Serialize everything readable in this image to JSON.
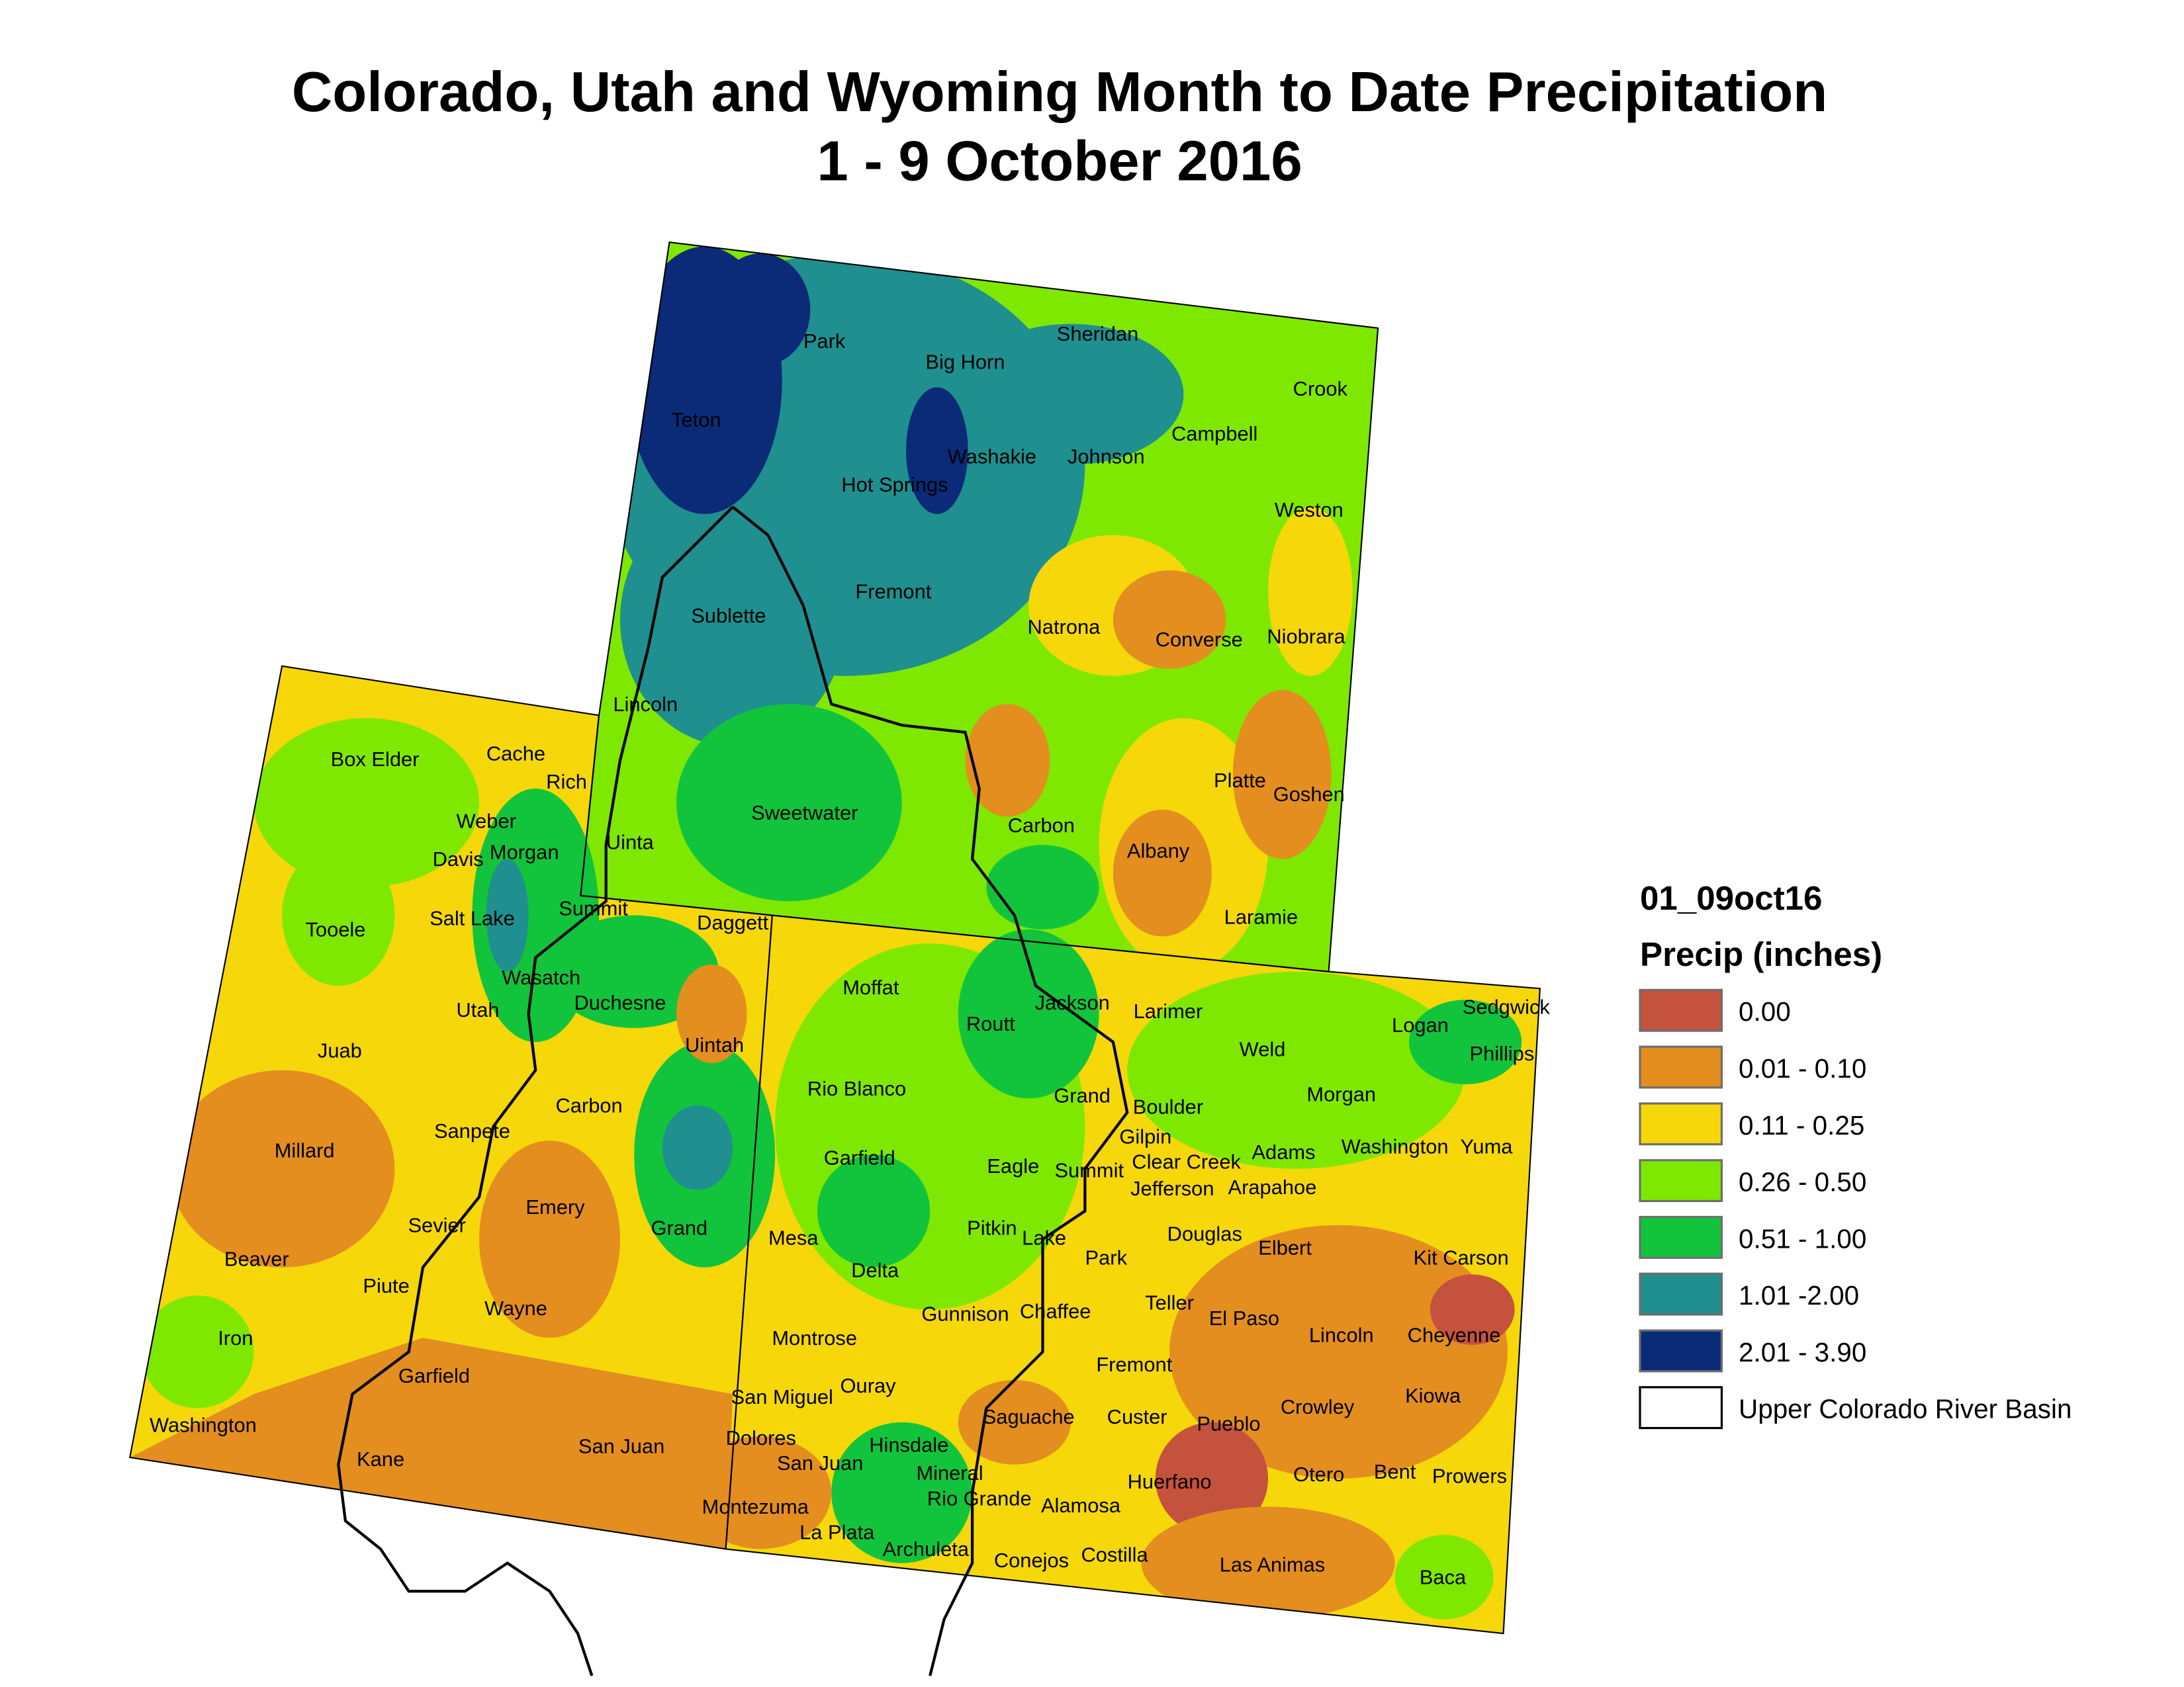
{
  "title": {
    "line1": "Colorado, Utah and Wyoming Month to Date Precipitation",
    "line2": "1 - 9 October 2016"
  },
  "legend": {
    "layer_name": "01_09oct16",
    "field_title": "Precip (inches)",
    "classes": [
      {
        "label": "0.00",
        "color": "#c4523c"
      },
      {
        "label": "0.01 - 0.10",
        "color": "#e38e1f"
      },
      {
        "label": "0.11 - 0.25",
        "color": "#f6d70a"
      },
      {
        "label": "0.26 - 0.50",
        "color": "#7fe800"
      },
      {
        "label": "0.51 - 1.00",
        "color": "#12c43c"
      },
      {
        "label": "1.01 -2.00",
        "color": "#1f8f8f"
      },
      {
        "label": "2.01 - 3.90",
        "color": "#0b2a78"
      }
    ],
    "basin_label": "Upper Colorado River Basin"
  },
  "counties": {
    "wyoming": [
      "Park",
      "Big Horn",
      "Sheridan",
      "Crook",
      "Teton",
      "Washakie",
      "Johnson",
      "Campbell",
      "Hot Springs",
      "Weston",
      "Fremont",
      "Sublette",
      "Natrona",
      "Converse",
      "Niobrara",
      "Lincoln",
      "Platte",
      "Goshen",
      "Sweetwater",
      "Carbon",
      "Albany",
      "Uinta",
      "Laramie"
    ],
    "utah": [
      "Box Elder",
      "Cache",
      "Rich",
      "Weber",
      "Davis",
      "Morgan",
      "Tooele",
      "Salt Lake",
      "Summit",
      "Daggett",
      "Wasatch",
      "Duchesne",
      "Utah",
      "Uintah",
      "Juab",
      "Carbon",
      "Sanpete",
      "Millard",
      "Emery",
      "Sevier",
      "Grand",
      "Beaver",
      "Piute",
      "Wayne",
      "Iron",
      "Garfield",
      "Washington",
      "Kane",
      "San Juan"
    ],
    "colorado": [
      "Moffat",
      "Jackson",
      "Larimer",
      "Logan",
      "Sedgwick",
      "Phillips",
      "Routt",
      "Weld",
      "Rio Blanco",
      "Grand",
      "Morgan",
      "Boulder",
      "Gilpin",
      "Garfield",
      "Eagle",
      "Summit",
      "Clear Creek",
      "Adams",
      "Washington",
      "Yuma",
      "Jefferson",
      "Arapahoe",
      "Mesa",
      "Pitkin",
      "Lake",
      "Douglas",
      "Elbert",
      "Kit Carson",
      "Park",
      "Delta",
      "Teller",
      "Gunnison",
      "Chaffee",
      "El Paso",
      "Lincoln",
      "Cheyenne",
      "Montrose",
      "Fremont",
      "Ouray",
      "San Miguel",
      "Kiowa",
      "Crowley",
      "Saguache",
      "Custer",
      "Pueblo",
      "Dolores",
      "Hinsdale",
      "San Juan",
      "Mineral",
      "Otero",
      "Bent",
      "Prowers",
      "Huerfano",
      "Rio Grande",
      "Alamosa",
      "Montezuma",
      "La Plata",
      "Archuleta",
      "Conejos",
      "Costilla",
      "Las Animas",
      "Baca"
    ]
  }
}
